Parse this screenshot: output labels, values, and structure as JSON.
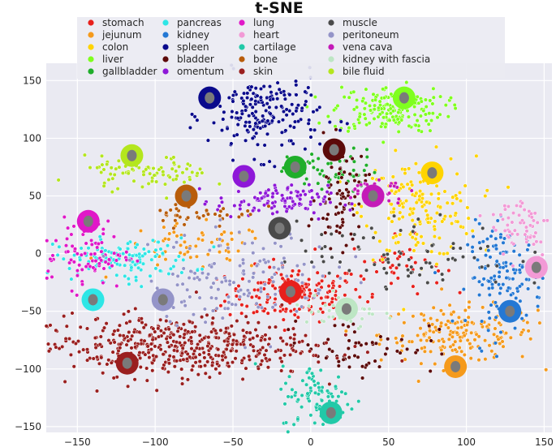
{
  "chart_data": {
    "type": "scatter",
    "title": "t-SNE",
    "xlabel": "",
    "ylabel": "",
    "xlim": [
      -170,
      155
    ],
    "ylim": [
      -155,
      165
    ],
    "xticks": [
      -150,
      -100,
      -50,
      0,
      50,
      100,
      150
    ],
    "yticks": [
      -150,
      -100,
      -50,
      0,
      50,
      100,
      150
    ],
    "grid": true,
    "legend_position": "top",
    "series": [
      {
        "name": "stomach",
        "color": "#e8201c",
        "clusters": [
          {
            "cx": -10,
            "cy": -35,
            "sx": 22,
            "sy": 12,
            "n": 170
          },
          {
            "cx": 55,
            "cy": -10,
            "sx": 15,
            "sy": 12,
            "n": 40
          }
        ]
      },
      {
        "name": "jejunum",
        "color": "#f59a1c",
        "clusters": [
          {
            "cx": 95,
            "cy": -70,
            "sx": 25,
            "sy": 12,
            "n": 180
          },
          {
            "cx": -75,
            "cy": 5,
            "sx": 25,
            "sy": 10,
            "n": 60
          }
        ]
      },
      {
        "name": "colon",
        "color": "#ffd400",
        "clusters": [
          {
            "cx": 70,
            "cy": 40,
            "sx": 18,
            "sy": 22,
            "n": 180
          }
        ]
      },
      {
        "name": "liver",
        "color": "#7fff1e",
        "clusters": [
          {
            "cx": 50,
            "cy": 125,
            "sx": 18,
            "sy": 10,
            "n": 180
          }
        ]
      },
      {
        "name": "gallbladder",
        "color": "#1fae2a",
        "clusters": [
          {
            "cx": 15,
            "cy": 70,
            "sx": 15,
            "sy": 10,
            "n": 60
          }
        ]
      },
      {
        "name": "pancreas",
        "color": "#2ee6e6",
        "clusters": [
          {
            "cx": -120,
            "cy": -5,
            "sx": 22,
            "sy": 9,
            "n": 130
          }
        ]
      },
      {
        "name": "kidney",
        "color": "#2478d4",
        "clusters": [
          {
            "cx": 125,
            "cy": -20,
            "sx": 12,
            "sy": 22,
            "n": 140
          }
        ]
      },
      {
        "name": "spleen",
        "color": "#0a0a8c",
        "clusters": [
          {
            "cx": -30,
            "cy": 120,
            "sx": 18,
            "sy": 18,
            "n": 200
          }
        ]
      },
      {
        "name": "bladder",
        "color": "#5c0a0a",
        "clusters": [
          {
            "cx": 20,
            "cy": 50,
            "sx": 8,
            "sy": 22,
            "n": 80
          },
          {
            "cx": 30,
            "cy": -80,
            "sx": 25,
            "sy": 12,
            "n": 60
          }
        ]
      },
      {
        "name": "omentum",
        "color": "#8e18d8",
        "clusters": [
          {
            "cx": -25,
            "cy": 45,
            "sx": 18,
            "sy": 7,
            "n": 110
          }
        ]
      },
      {
        "name": "lung",
        "color": "#e018c8",
        "clusters": [
          {
            "cx": -145,
            "cy": 0,
            "sx": 15,
            "sy": 15,
            "n": 90
          }
        ]
      },
      {
        "name": "heart",
        "color": "#f29ad6",
        "clusters": [
          {
            "cx": 135,
            "cy": 25,
            "sx": 10,
            "sy": 15,
            "n": 60
          }
        ]
      },
      {
        "name": "cartilage",
        "color": "#22c9a8",
        "clusters": [
          {
            "cx": 5,
            "cy": -125,
            "sx": 12,
            "sy": 14,
            "n": 90
          }
        ]
      },
      {
        "name": "bone",
        "color": "#b85c0a",
        "clusters": [
          {
            "cx": -70,
            "cy": 35,
            "sx": 18,
            "sy": 6,
            "n": 40
          }
        ]
      },
      {
        "name": "skin",
        "color": "#9a1f1f",
        "clusters": [
          {
            "cx": -90,
            "cy": -80,
            "sx": 45,
            "sy": 13,
            "n": 480
          }
        ]
      },
      {
        "name": "muscle",
        "color": "#4a4a4a",
        "clusters": [
          {
            "cx": 60,
            "cy": 0,
            "sx": 35,
            "sy": 15,
            "n": 80
          }
        ]
      },
      {
        "name": "peritoneum",
        "color": "#9494c8",
        "clusters": [
          {
            "cx": -45,
            "cy": -20,
            "sx": 30,
            "sy": 20,
            "n": 150
          }
        ]
      },
      {
        "name": "vena cava",
        "color": "#c41ab8",
        "clusters": [
          {
            "cx": 40,
            "cy": 55,
            "sx": 10,
            "sy": 6,
            "n": 30
          }
        ]
      },
      {
        "name": "kidney with fascia",
        "color": "#bde6c4",
        "clusters": [
          {
            "cx": 20,
            "cy": -50,
            "sx": 12,
            "sy": 10,
            "n": 40
          }
        ]
      },
      {
        "name": "bile fluid",
        "color": "#b4e61e",
        "clusters": [
          {
            "cx": -105,
            "cy": 70,
            "sx": 20,
            "sy": 7,
            "n": 90
          }
        ]
      }
    ],
    "organ_icons": [
      {
        "organ": "spleen",
        "x": -65,
        "y": 135
      },
      {
        "organ": "liver",
        "x": 60,
        "y": 135
      },
      {
        "organ": "bile fluid",
        "x": -115,
        "y": 85
      },
      {
        "organ": "bladder",
        "x": 15,
        "y": 90
      },
      {
        "organ": "gallbladder",
        "x": -10,
        "y": 75
      },
      {
        "organ": "colon",
        "x": 78,
        "y": 70
      },
      {
        "organ": "omentum",
        "x": -43,
        "y": 67
      },
      {
        "organ": "vena cava",
        "x": 40,
        "y": 50
      },
      {
        "organ": "bone",
        "x": -80,
        "y": 50
      },
      {
        "organ": "lung",
        "x": -143,
        "y": 28
      },
      {
        "organ": "muscle",
        "x": -20,
        "y": 22
      },
      {
        "organ": "heart",
        "x": 145,
        "y": -12
      },
      {
        "organ": "stomach",
        "x": -13,
        "y": -33
      },
      {
        "organ": "pancreas",
        "x": -140,
        "y": -40
      },
      {
        "organ": "peritoneum",
        "x": -95,
        "y": -40
      },
      {
        "organ": "kidney with fascia",
        "x": 23,
        "y": -48
      },
      {
        "organ": "kidney",
        "x": 128,
        "y": -50
      },
      {
        "organ": "skin",
        "x": -118,
        "y": -95
      },
      {
        "organ": "jejunum",
        "x": 93,
        "y": -98
      },
      {
        "organ": "cartilage",
        "x": 13,
        "y": -138
      }
    ]
  }
}
